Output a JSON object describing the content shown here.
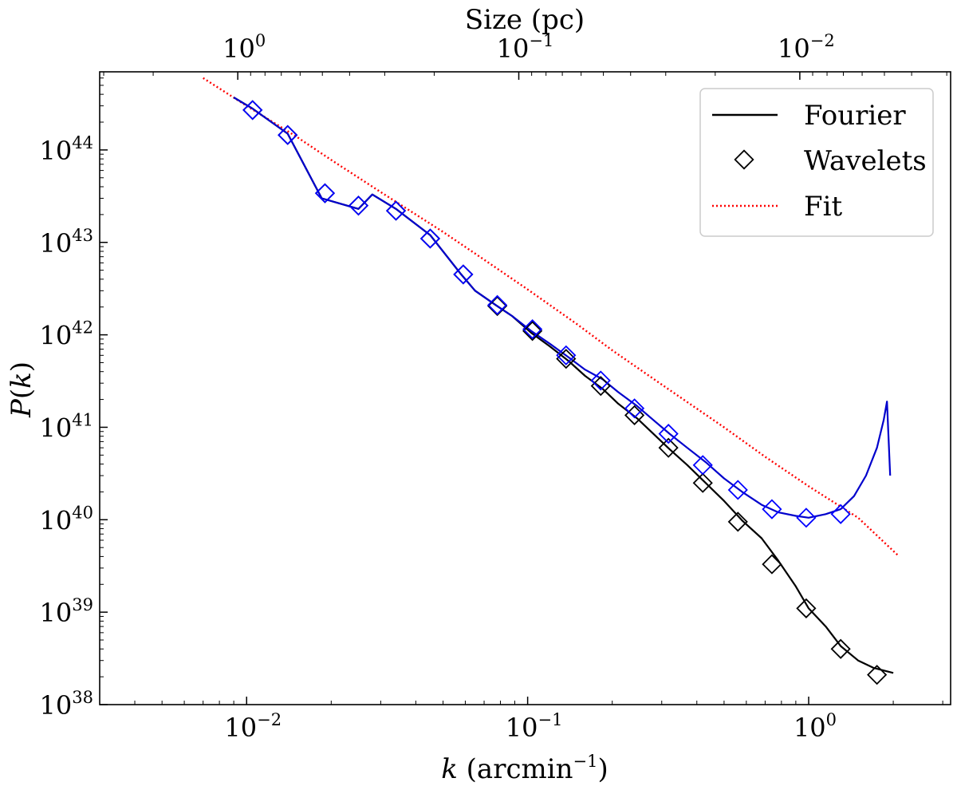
{
  "chart_data": {
    "type": "line",
    "xscale": "log",
    "yscale": "log",
    "xlabel": "k (arcmin⁻¹)",
    "ylabel": "P(k)",
    "top_xlabel": "Size (pc)",
    "xlim": [
      0.003,
      3.2
    ],
    "ylim": [
      1e+38,
      7e+44
    ],
    "top_axis": {
      "description": "Size (pc), reciprocal scale of bottom axis",
      "ticks": [
        {
          "base": "10",
          "exp": "0",
          "k": 0.0093
        },
        {
          "base": "10",
          "exp": "−1",
          "k": 0.093
        },
        {
          "base": "10",
          "exp": "−2",
          "k": 0.93
        }
      ]
    },
    "x_ticks": [
      {
        "base": "10",
        "exp": "−2",
        "value": 0.01
      },
      {
        "base": "10",
        "exp": "−1",
        "value": 0.1
      },
      {
        "base": "10",
        "exp": "0",
        "value": 1
      }
    ],
    "y_ticks": [
      {
        "base": "10",
        "exp": "38",
        "value": 1e+38
      },
      {
        "base": "10",
        "exp": "39",
        "value": 1e+39
      },
      {
        "base": "10",
        "exp": "40",
        "value": 1e+40
      },
      {
        "base": "10",
        "exp": "41",
        "value": 1e+41
      },
      {
        "base": "10",
        "exp": "42",
        "value": 1e+42
      },
      {
        "base": "10",
        "exp": "43",
        "value": 1e+43
      },
      {
        "base": "10",
        "exp": "44",
        "value": 1e+44
      }
    ],
    "legend": {
      "position": "top-right",
      "entries": [
        {
          "label": "Fourier",
          "style": "solid",
          "color": "#000000"
        },
        {
          "label": "Wavelets",
          "style": "diamond",
          "color": "#000000"
        },
        {
          "label": "Fit",
          "style": "dotted",
          "color": "#ff0000"
        }
      ]
    },
    "series": [
      {
        "style": "dotted",
        "color": "#ff0000",
        "x": [
          0.007,
          0.01,
          0.015,
          0.02,
          0.03,
          0.05,
          0.07,
          0.1,
          0.15,
          0.2,
          0.3,
          0.5,
          0.7,
          1.0,
          1.5,
          2.1
        ],
        "y": [
          6e+44,
          3e+44,
          1.4e+44,
          7.8e+43,
          3.5e+43,
          1.3e+43,
          6.5e+42,
          3.1e+42,
          1.3e+42,
          6.8e+41,
          2.9e+41,
          1e+41,
          4.8e+40,
          2.3e+40,
          1.05e+40,
          4e+39
        ]
      },
      {
        "style": "solid",
        "color": "#000000",
        "x": [
          0.009,
          0.0105,
          0.014,
          0.0185,
          0.025,
          0.028,
          0.034,
          0.045,
          0.058,
          0.065,
          0.077,
          0.088,
          0.103,
          0.12,
          0.14,
          0.16,
          0.185,
          0.21,
          0.245,
          0.28,
          0.32,
          0.37,
          0.43,
          0.5,
          0.58,
          0.68,
          0.78,
          0.9,
          1.0,
          1.15,
          1.3,
          1.5,
          1.7,
          2.0
        ],
        "y": [
          3.7e+44,
          2.8e+44,
          1.5e+44,
          3e+43,
          2.3e+43,
          3.3e+43,
          2.3e+43,
          1.2e+43,
          4.5e+42,
          3e+42,
          2.1e+42,
          1.6e+42,
          1.05e+42,
          7.5e+41,
          5.2e+41,
          3.6e+41,
          2.6e+41,
          1.8e+41,
          1.25e+41,
          8.5e+40,
          5.8e+40,
          3.9e+40,
          2.5e+40,
          1.6e+40,
          9.8e+39,
          6.3e+39,
          3.6e+39,
          1.9e+39,
          1.1e+39,
          7e+38,
          4.3e+38,
          3e+38,
          2.5e+38,
          2.2e+38
        ]
      },
      {
        "style": "solid",
        "color": "#0000cc",
        "x": [
          0.009,
          0.0105,
          0.014,
          0.0185,
          0.025,
          0.028,
          0.034,
          0.045,
          0.058,
          0.065,
          0.077,
          0.088,
          0.103,
          0.12,
          0.14,
          0.16,
          0.185,
          0.21,
          0.245,
          0.28,
          0.32,
          0.37,
          0.43,
          0.5,
          0.58,
          0.68,
          0.78,
          0.9,
          1.0,
          1.15,
          1.3,
          1.45,
          1.6,
          1.75,
          1.85,
          1.9,
          1.95
        ],
        "y": [
          3.7e+44,
          2.8e+44,
          1.5e+44,
          3e+43,
          2.3e+43,
          3.3e+43,
          2.3e+43,
          1.2e+43,
          4.5e+42,
          3e+42,
          2.1e+42,
          1.6e+42,
          1.1e+42,
          8e+41,
          5.7e+41,
          4.2e+41,
          3.3e+41,
          2.4e+41,
          1.7e+41,
          1.2e+41,
          8.5e+40,
          6e+40,
          4.2e+40,
          2.8e+40,
          2e+40,
          1.45e+40,
          1.2e+40,
          1.1e+40,
          1.05e+40,
          1.15e+40,
          1.3e+40,
          1.8e+40,
          3e+40,
          6e+40,
          1.2e+41,
          1.9e+41,
          3e+40
        ]
      },
      {
        "style": "diamond",
        "color": "#000000",
        "x": [
          0.0105,
          0.014,
          0.019,
          0.025,
          0.034,
          0.045,
          0.059,
          0.078,
          0.104,
          0.137,
          0.182,
          0.24,
          0.317,
          0.42,
          0.56,
          0.74,
          0.98,
          1.3,
          1.75
        ],
        "y": [
          2.7e+44,
          1.45e+44,
          3.4e+43,
          2.5e+43,
          2.2e+43,
          1.1e+43,
          4.5e+42,
          2.05e+42,
          1.1e+42,
          5.5e+41,
          2.8e+41,
          1.35e+41,
          6e+40,
          2.5e+40,
          9.5e+39,
          3.3e+39,
          1.1e+39,
          4e+38,
          2.1e+38
        ]
      },
      {
        "style": "diamond",
        "color": "#0000ff",
        "x": [
          0.0105,
          0.014,
          0.019,
          0.025,
          0.034,
          0.045,
          0.059,
          0.078,
          0.104,
          0.137,
          0.182,
          0.24,
          0.317,
          0.42,
          0.56,
          0.74,
          0.98,
          1.3
        ],
        "y": [
          2.7e+44,
          1.45e+44,
          3.4e+43,
          2.5e+43,
          2.2e+43,
          1.1e+43,
          4.5e+42,
          2.1e+42,
          1.15e+42,
          6e+41,
          3.2e+41,
          1.6e+41,
          8.5e+40,
          3.9e+40,
          2.1e+40,
          1.3e+40,
          1.05e+40,
          1.15e+40
        ]
      }
    ]
  }
}
